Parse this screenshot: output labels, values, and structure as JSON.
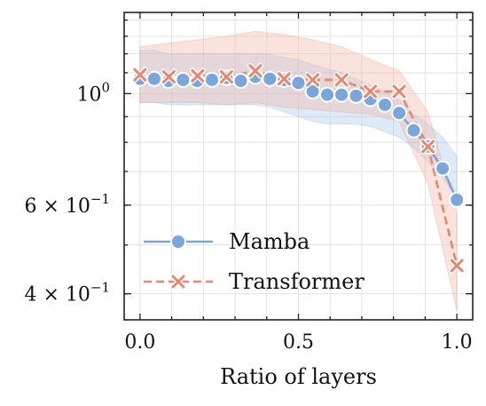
{
  "chart_data": {
    "type": "line",
    "title": "",
    "xlabel": "Ratio of layers",
    "ylabel": "",
    "xlim": [
      -0.05,
      1.05
    ],
    "ylim": [
      0.355,
      1.45
    ],
    "yscale": "log",
    "grid": true,
    "legend_position": "lower-left",
    "x_ticks": [
      {
        "value": 0.0,
        "label": "0.0"
      },
      {
        "value": 0.5,
        "label": "0.5"
      },
      {
        "value": 1.0,
        "label": "1.0"
      }
    ],
    "y_ticks": [
      {
        "value": 1.0,
        "base": "10",
        "exp": "0",
        "prefix": ""
      },
      {
        "value": 0.6,
        "base": "10",
        "exp": "−1",
        "prefix": "6 × "
      },
      {
        "value": 0.4,
        "base": "10",
        "exp": "−1",
        "prefix": "4 × "
      }
    ],
    "series": [
      {
        "name": "Mamba",
        "color": "#7aa6dc",
        "band_color": "#a9c7ec",
        "marker": "circle",
        "line_style": "solid",
        "x": [
          0.0,
          0.045,
          0.09,
          0.136,
          0.18,
          0.227,
          0.273,
          0.318,
          0.364,
          0.41,
          0.455,
          0.5,
          0.545,
          0.591,
          0.636,
          0.682,
          0.727,
          0.773,
          0.818,
          0.864,
          0.909,
          0.955,
          1.0
        ],
        "y": [
          1.07,
          1.07,
          1.06,
          1.065,
          1.06,
          1.065,
          1.075,
          1.06,
          1.08,
          1.07,
          1.065,
          1.05,
          1.01,
          0.995,
          0.995,
          0.99,
          0.975,
          0.95,
          0.915,
          0.845,
          0.785,
          0.71,
          0.615
        ],
        "upper": [
          1.22,
          1.22,
          1.2,
          1.2,
          1.2,
          1.2,
          1.2,
          1.2,
          1.2,
          1.2,
          1.18,
          1.17,
          1.14,
          1.12,
          1.1,
          1.07,
          1.04,
          1.01,
          0.97,
          0.91,
          0.87,
          0.82,
          0.75
        ],
        "lower": [
          0.96,
          0.96,
          0.95,
          0.95,
          0.95,
          0.95,
          0.95,
          0.95,
          0.95,
          0.94,
          0.92,
          0.9,
          0.88,
          0.87,
          0.87,
          0.87,
          0.86,
          0.84,
          0.82,
          0.78,
          0.73,
          0.68,
          0.62
        ]
      },
      {
        "name": "Transformer",
        "color": "#e8866e",
        "band_color": "#f2b6a6",
        "marker": "x",
        "line_style": "dashed",
        "x": [
          0.0,
          0.091,
          0.182,
          0.273,
          0.364,
          0.455,
          0.545,
          0.636,
          0.727,
          0.818,
          0.909,
          1.0
        ],
        "y": [
          1.09,
          1.08,
          1.085,
          1.08,
          1.11,
          1.07,
          1.065,
          1.065,
          1.01,
          1.01,
          0.785,
          0.455
        ],
        "upper": [
          1.24,
          1.26,
          1.28,
          1.3,
          1.33,
          1.31,
          1.28,
          1.24,
          1.17,
          1.11,
          0.92,
          0.58
        ],
        "lower": [
          0.96,
          0.96,
          0.96,
          0.95,
          0.96,
          0.94,
          0.93,
          0.92,
          0.91,
          0.88,
          0.66,
          0.37
        ]
      }
    ]
  }
}
